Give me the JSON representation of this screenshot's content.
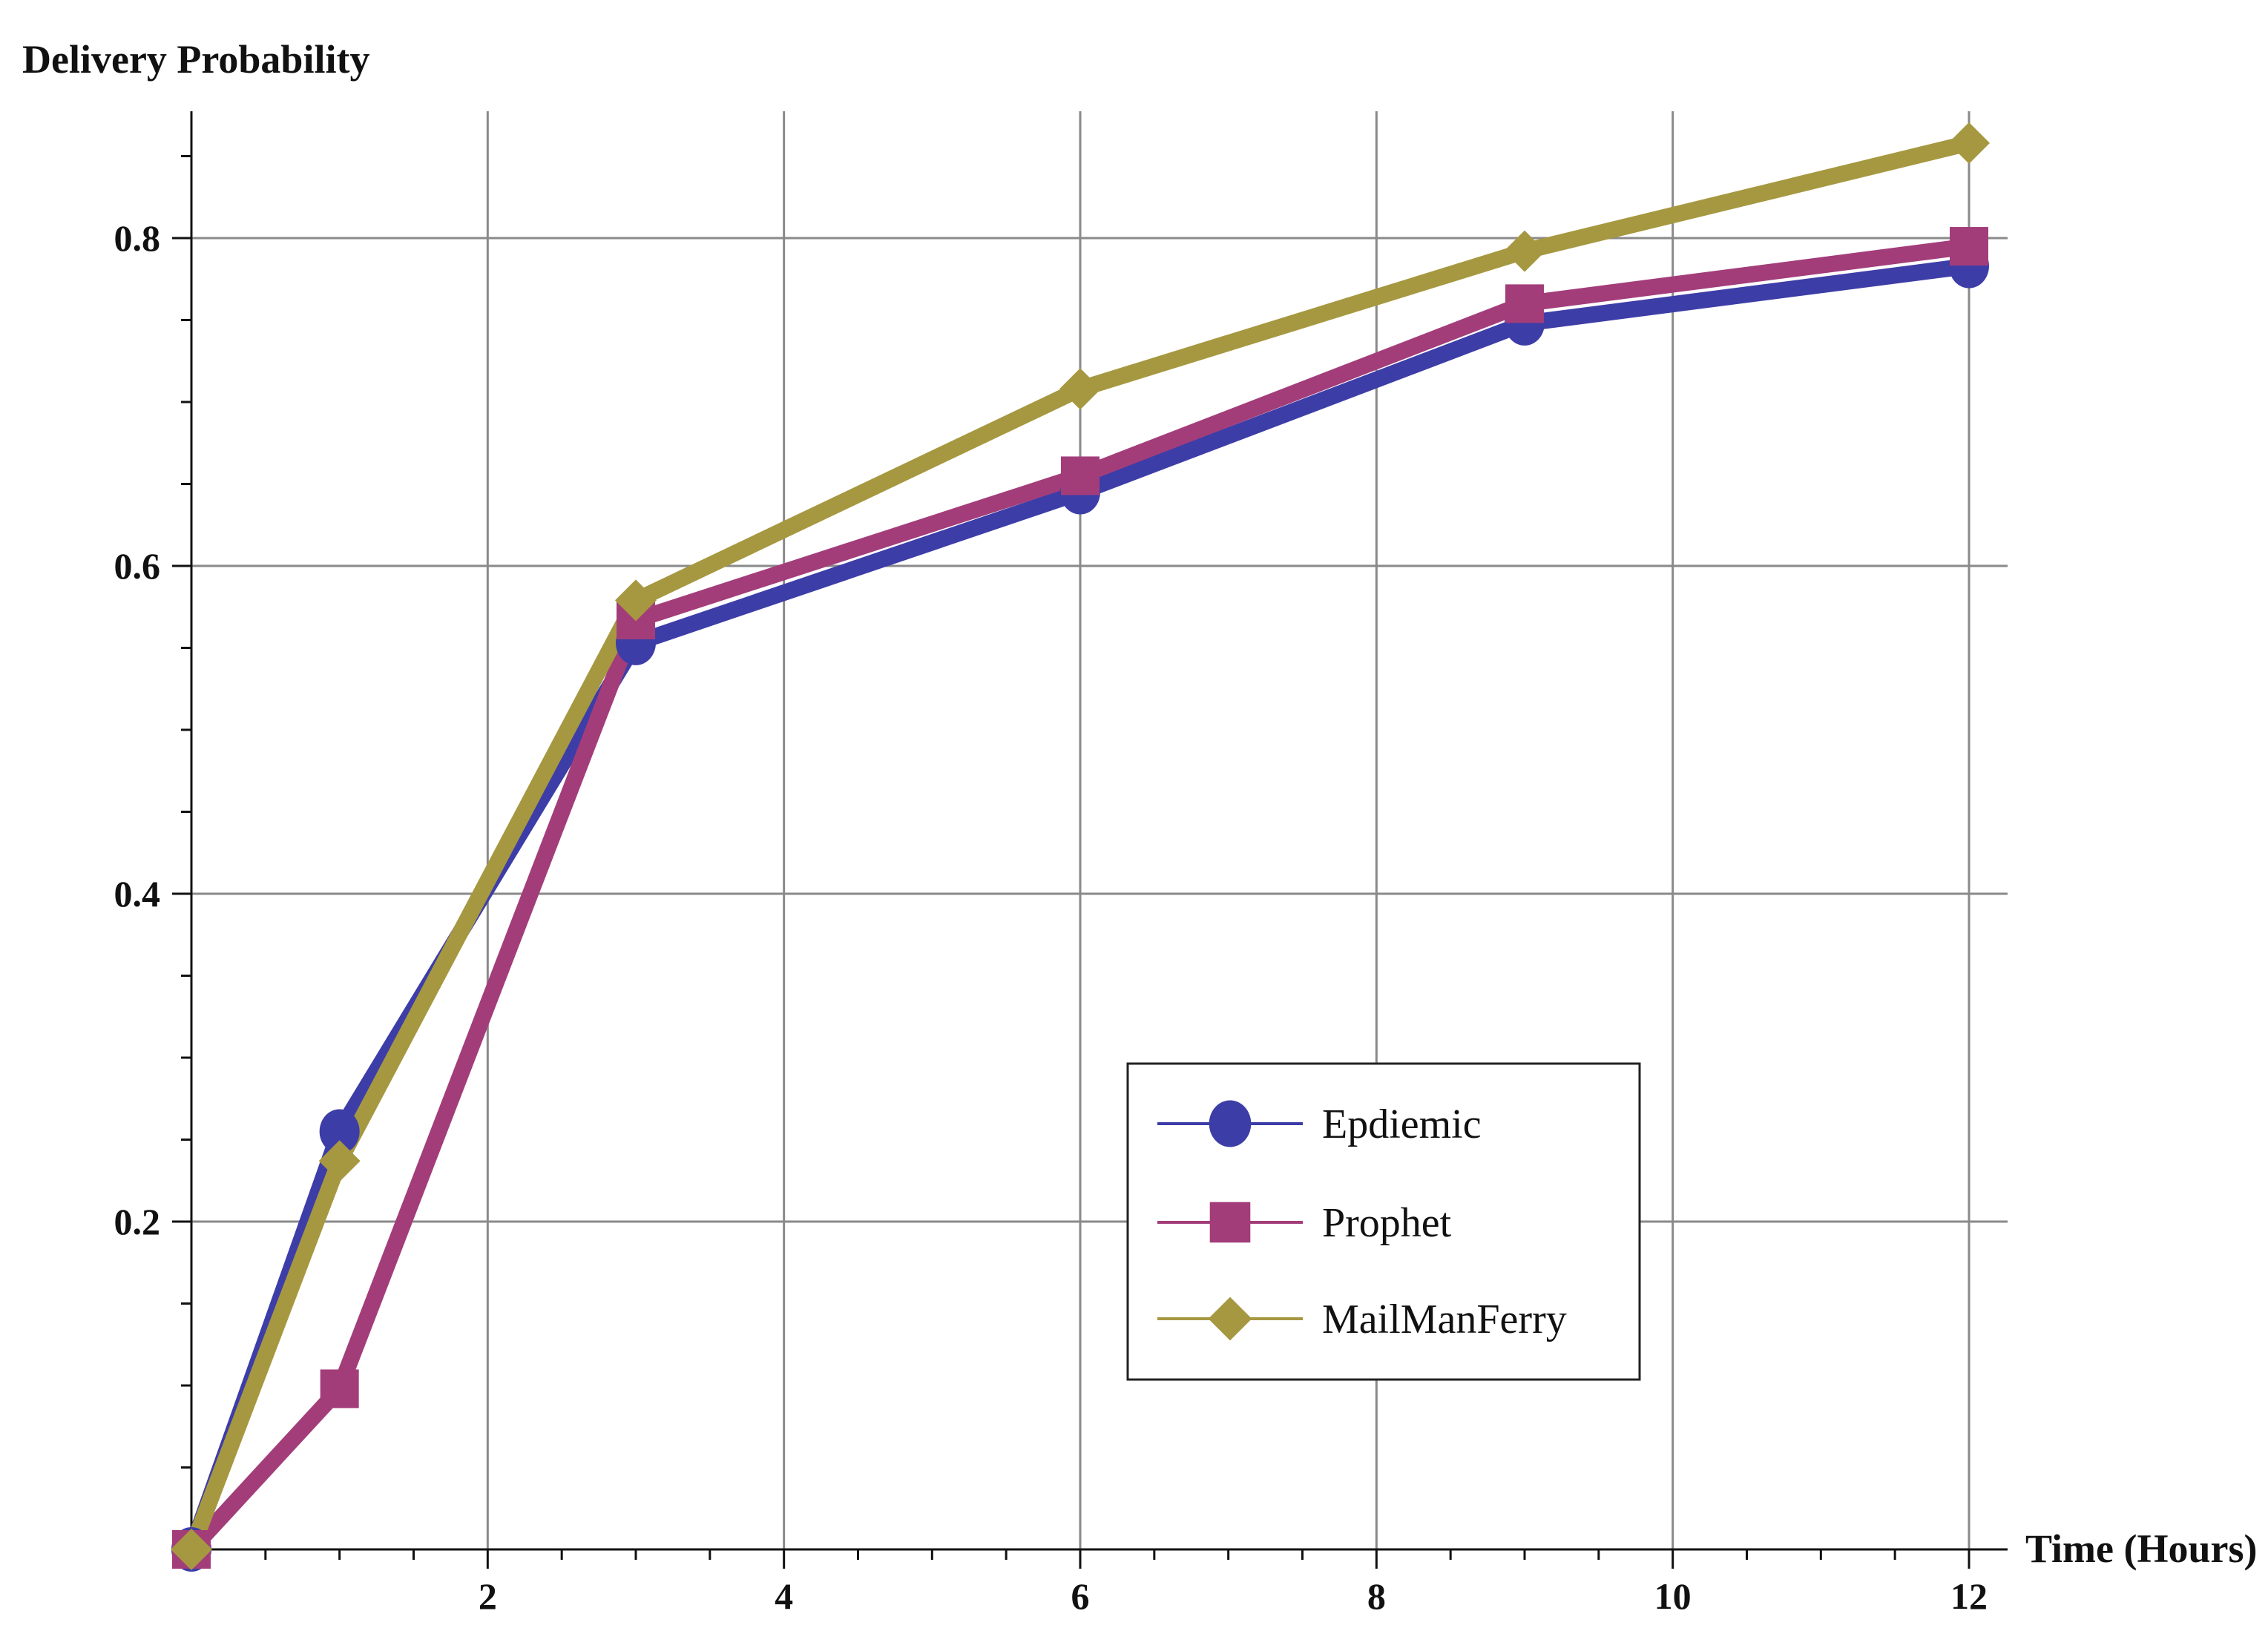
{
  "chart_data": {
    "type": "line",
    "xlabel": "Time (Hours)",
    "ylabel": "Delivery Probability",
    "x": [
      0,
      1,
      3,
      6,
      9,
      12
    ],
    "xlim": [
      0,
      12.3
    ],
    "ylim": [
      0,
      0.88
    ],
    "xticks": [
      2,
      4,
      6,
      8,
      10,
      12
    ],
    "yticks": [
      0.2,
      0.4,
      0.6,
      0.8
    ],
    "xtick_labels": [
      "2",
      "4",
      "6",
      "8",
      "10",
      "12"
    ],
    "ytick_labels": [
      "0.2",
      "0.4",
      "0.6",
      "0.8"
    ],
    "grid": true,
    "legend_position": "lower-right",
    "series": [
      {
        "name": "Epdiemic",
        "values": [
          0.0,
          0.255,
          0.553,
          0.645,
          0.748,
          0.783
        ],
        "color": "#3d3da8",
        "marker": "circle"
      },
      {
        "name": "Prophet",
        "values": [
          0.0,
          0.098,
          0.567,
          0.655,
          0.76,
          0.795
        ],
        "color": "#a33d7a",
        "marker": "square"
      },
      {
        "name": "MailManFerry",
        "values": [
          0.0,
          0.237,
          0.579,
          0.708,
          0.792,
          0.858
        ],
        "color": "#a69840",
        "marker": "diamond"
      }
    ]
  }
}
